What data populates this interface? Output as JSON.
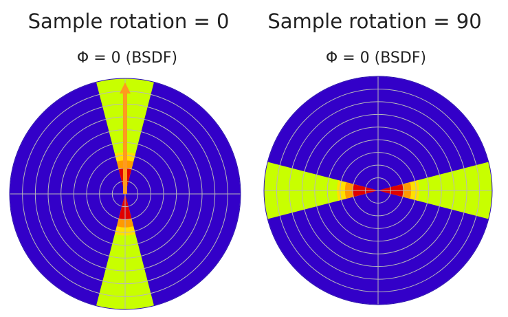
{
  "panels": [
    {
      "title": "Sample rotation = 0",
      "subtitle": "Φ = 0 (BSDF)",
      "rotation_deg": 0,
      "scatter_axis": "vertical",
      "has_incident_arrow": true
    },
    {
      "title": "Sample rotation = 90",
      "subtitle": "Φ = 0 (BSDF)",
      "rotation_deg": 90,
      "scatter_axis": "horizontal",
      "has_incident_arrow": false
    }
  ],
  "colors": {
    "background": "#3300c8",
    "lobe_outer": "#c8ff00",
    "lobe_mid": "#ffe000",
    "lobe_inner": "#ff9a00",
    "lobe_core": "#e00000",
    "grid": "#b8b8b8",
    "arrow": "#ff9a1e"
  },
  "polar": {
    "ring_count": 9
  }
}
